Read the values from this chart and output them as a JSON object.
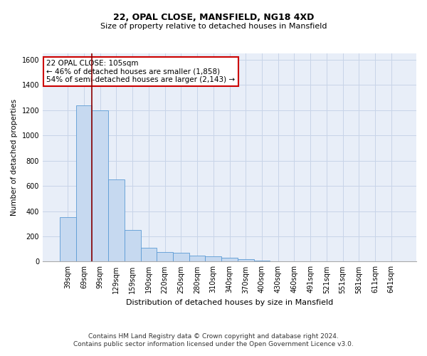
{
  "title1": "22, OPAL CLOSE, MANSFIELD, NG18 4XD",
  "title2": "Size of property relative to detached houses in Mansfield",
  "xlabel": "Distribution of detached houses by size in Mansfield",
  "ylabel": "Number of detached properties",
  "footer1": "Contains HM Land Registry data © Crown copyright and database right 2024.",
  "footer2": "Contains public sector information licensed under the Open Government Licence v3.0.",
  "annotation_line1": "22 OPAL CLOSE: 105sqm",
  "annotation_line2": "← 46% of detached houses are smaller (1,858)",
  "annotation_line3": "54% of semi-detached houses are larger (2,143) →",
  "bar_color": "#c6d9f0",
  "bar_edge_color": "#5b9bd5",
  "vline_color": "#8b0000",
  "annotation_box_edge": "#cc0000",
  "grid_color": "#c8d4e8",
  "background_color": "#e8eef8",
  "categories": [
    "39sqm",
    "69sqm",
    "99sqm",
    "129sqm",
    "159sqm",
    "190sqm",
    "220sqm",
    "250sqm",
    "280sqm",
    "310sqm",
    "340sqm",
    "370sqm",
    "400sqm",
    "430sqm",
    "460sqm",
    "491sqm",
    "521sqm",
    "551sqm",
    "581sqm",
    "611sqm",
    "641sqm"
  ],
  "values": [
    350,
    1240,
    1200,
    650,
    250,
    110,
    75,
    70,
    45,
    40,
    30,
    18,
    8,
    0,
    0,
    0,
    0,
    0,
    0,
    0,
    0
  ],
  "ylim": [
    0,
    1650
  ],
  "yticks": [
    0,
    200,
    400,
    600,
    800,
    1000,
    1200,
    1400,
    1600
  ],
  "vline_position": 1.5,
  "title1_fontsize": 9,
  "title2_fontsize": 8,
  "xlabel_fontsize": 8,
  "ylabel_fontsize": 7.5,
  "tick_fontsize": 7,
  "annotation_fontsize": 7.5,
  "footer_fontsize": 6.5
}
